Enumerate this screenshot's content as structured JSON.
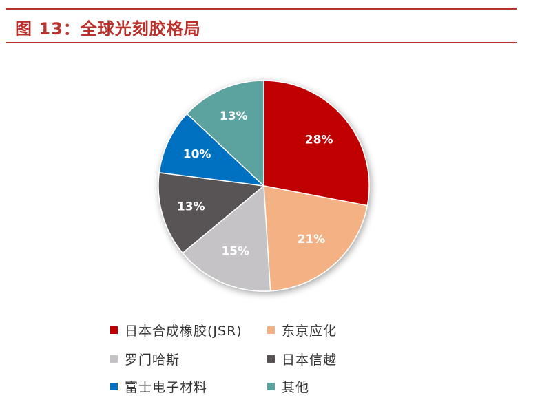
{
  "title": "图 13：全球光刻胶格局",
  "chart_data": {
    "type": "pie",
    "title": "图 13：全球光刻胶格局",
    "slices": [
      {
        "label": "日本合成橡胶(JSR)",
        "value": 28,
        "display": "28%",
        "color": "#c00000"
      },
      {
        "label": "东京应化",
        "value": 21,
        "display": "21%",
        "color": "#f4b183"
      },
      {
        "label": "罗门哈斯",
        "value": 15,
        "display": "15%",
        "color": "#c5c3c6"
      },
      {
        "label": "日本信越",
        "value": 13,
        "display": "13%",
        "color": "#595355"
      },
      {
        "label": "富士电子材料",
        "value": 10,
        "display": "10%",
        "color": "#0070c0"
      },
      {
        "label": "其他",
        "value": 13,
        "display": "13%",
        "color": "#5ba3a0"
      }
    ],
    "legend_position": "bottom"
  }
}
